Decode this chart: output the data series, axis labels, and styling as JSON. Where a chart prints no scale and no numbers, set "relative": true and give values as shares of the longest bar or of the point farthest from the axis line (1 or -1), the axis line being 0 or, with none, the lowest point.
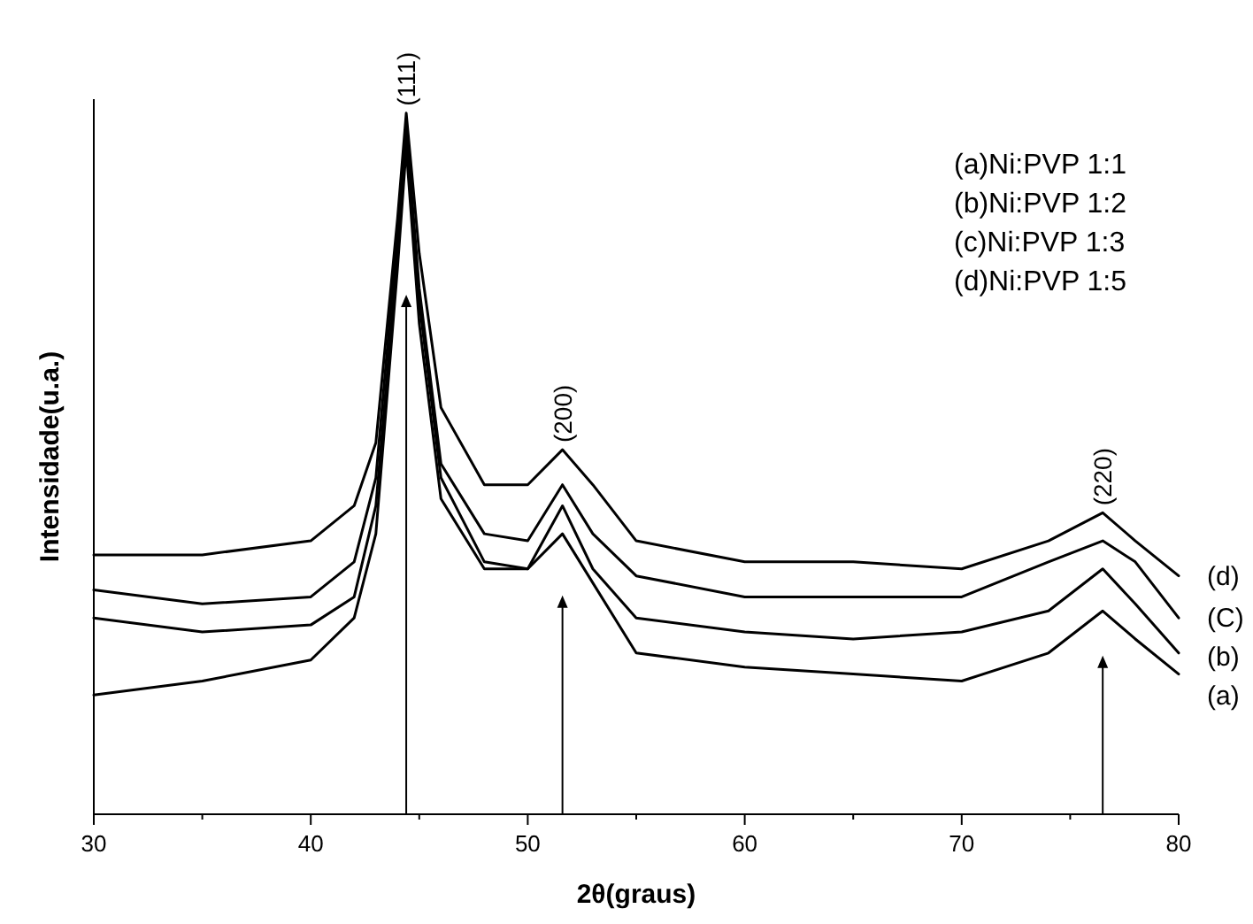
{
  "chart_data": {
    "type": "line",
    "relative": true,
    "xlabel": "2θ(graus)",
    "ylabel": "Intensidade(u.a.)",
    "x": [
      30,
      35,
      40,
      42,
      43,
      44,
      44.4,
      45,
      46,
      48,
      50,
      51.6,
      53,
      55,
      60,
      65,
      70,
      74,
      76.5,
      78,
      80
    ],
    "xlim": [
      30,
      80
    ],
    "xticks": [
      30,
      {
        "value": 35,
        "label": null
      },
      40,
      {
        "value": 45,
        "label": null
      },
      50,
      {
        "value": 55,
        "label": null
      },
      60,
      {
        "value": 65,
        "label": null
      },
      70,
      {
        "value": 75,
        "label": null
      },
      80
    ],
    "series": [
      {
        "name": "(d)",
        "color": "#000000",
        "values": [
          0.37,
          0.37,
          0.39,
          0.44,
          0.53,
          0.85,
          1,
          0.8,
          0.58,
          0.47,
          0.47,
          0.52,
          0.47,
          0.39,
          0.36,
          0.36,
          0.35,
          0.39,
          0.43,
          0.39,
          0.34
        ]
      },
      {
        "name": "(C)",
        "color": "#000000",
        "values": [
          0.32,
          0.3,
          0.31,
          0.36,
          0.48,
          0.83,
          0.98,
          0.75,
          0.5,
          0.4,
          0.39,
          0.47,
          0.4,
          0.34,
          0.31,
          0.31,
          0.31,
          0.36,
          0.39,
          0.36,
          0.28
        ]
      },
      {
        "name": "(b)",
        "color": "#000000",
        "values": [
          0.28,
          0.26,
          0.27,
          0.31,
          0.44,
          0.8,
          0.97,
          0.73,
          0.48,
          0.36,
          0.35,
          0.44,
          0.35,
          0.28,
          0.26,
          0.25,
          0.26,
          0.29,
          0.35,
          0.3,
          0.23
        ]
      },
      {
        "name": "(a)",
        "color": "#000000",
        "values": [
          0.17,
          0.19,
          0.22,
          0.28,
          0.4,
          0.78,
          0.95,
          0.7,
          0.45,
          0.35,
          0.35,
          0.4,
          0.33,
          0.23,
          0.21,
          0.2,
          0.19,
          0.23,
          0.29,
          0.25,
          0.2
        ]
      }
    ],
    "annotations": [
      {
        "text": "(111)",
        "x": 44.4,
        "y": 1
      },
      {
        "text": "(200)",
        "x": 51.6,
        "y": 0.52
      },
      {
        "text": "(220)",
        "x": 76.5,
        "y": 0.43
      },
      "(a)Ni:PVP 1:1",
      "(b)Ni:PVP 1:2",
      "(c)Ni:PVP 1:3",
      "(d)Ni:PVP 1:5"
    ],
    "legend": false,
    "grid": false,
    "marker": "none",
    "line_style": "solid"
  }
}
